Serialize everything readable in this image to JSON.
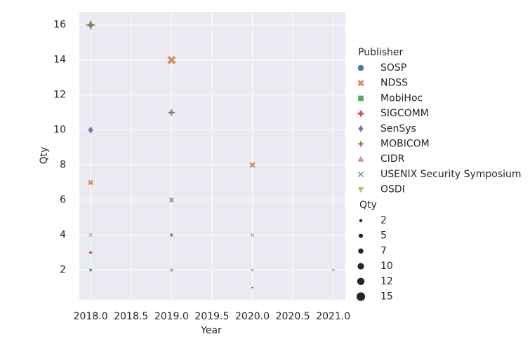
{
  "chart_data": {
    "type": "scatter",
    "xlabel": "Year",
    "ylabel": "Qty",
    "xlim": [
      2017.86,
      2021.15
    ],
    "ylim": [
      0.3,
      16.75
    ],
    "xticks": [
      {
        "value": 2018,
        "label": "2018.0"
      },
      {
        "value": 2018.5,
        "label": "2018.5"
      },
      {
        "value": 2019,
        "label": "2019.0"
      },
      {
        "value": 2019.5,
        "label": "2019.5"
      },
      {
        "value": 2020,
        "label": "2020.0"
      },
      {
        "value": 2020.5,
        "label": "2020.5"
      },
      {
        "value": 2021,
        "label": "2021.0"
      }
    ],
    "yticks": [
      2,
      4,
      6,
      8,
      10,
      12,
      14,
      16
    ],
    "grid": true,
    "legend_title": "Publisher",
    "series": [
      {
        "name": "SOSP",
        "color": "#4c72b0",
        "marker": "circle",
        "x": [
          2019
        ],
        "values": [
          2
        ]
      },
      {
        "name": "NDSS",
        "color": "#dd8452",
        "marker": "x",
        "x": [
          2018,
          2019,
          2020
        ],
        "values": [
          7,
          14,
          8
        ]
      },
      {
        "name": "MobiHoc",
        "color": "#55a868",
        "marker": "square",
        "x": [
          2018,
          2019
        ],
        "values": [
          2,
          2
        ]
      },
      {
        "name": "SIGCOMM",
        "color": "#c44e52",
        "marker": "plus",
        "x": [
          2018
        ],
        "values": [
          3
        ]
      },
      {
        "name": "SenSys",
        "color": "#8172b3",
        "marker": "diamond",
        "x": [
          2018,
          2019
        ],
        "values": [
          10,
          4
        ]
      },
      {
        "name": "MOBICOM",
        "color": "#937860",
        "marker": "star",
        "x": [
          2018,
          2019,
          2019,
          2020
        ],
        "values": [
          16,
          11,
          4,
          1
        ]
      },
      {
        "name": "CIDR",
        "color": "#da8bc3",
        "marker": "triangle",
        "x": [
          2019,
          2020
        ],
        "values": [
          6,
          2
        ]
      },
      {
        "name": "USENIX Security Symposium",
        "color": "#8c8c8c",
        "marker": "thinx",
        "x": [
          2018,
          2019,
          2020,
          2021
        ],
        "values": [
          4,
          6,
          4,
          2
        ]
      },
      {
        "name": "OSDI",
        "color": "#ccb974",
        "marker": "tridown",
        "x": [
          2019
        ],
        "values": [
          2
        ]
      }
    ],
    "size_legend": {
      "title": "Qty",
      "values": [
        2,
        5,
        7,
        10,
        12,
        15
      ]
    }
  }
}
